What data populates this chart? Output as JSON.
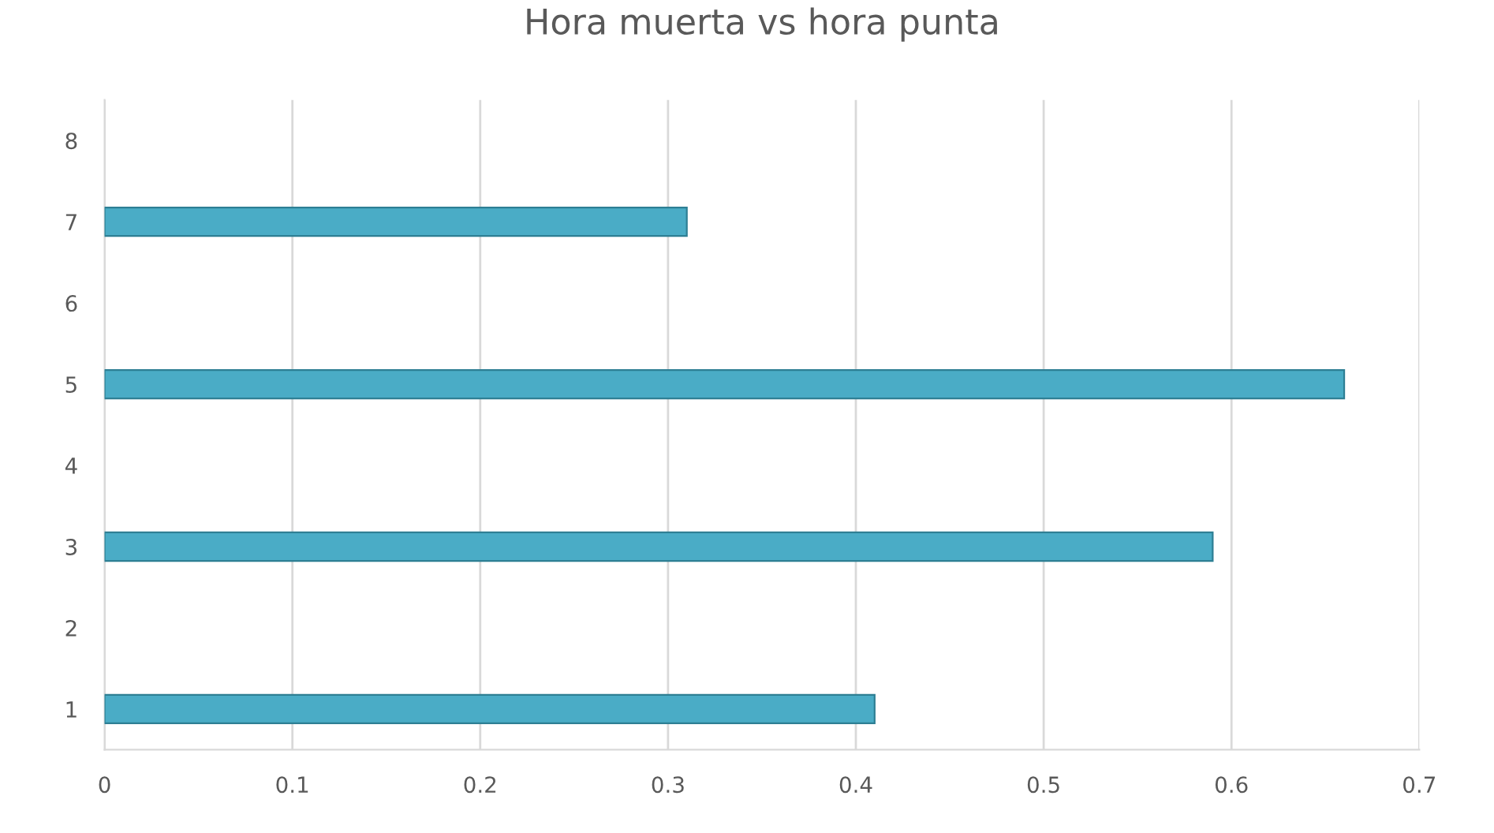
{
  "chart_data": {
    "type": "bar",
    "orientation": "horizontal",
    "title": "Hora muerta vs hora punta",
    "categories": [
      "8",
      "7",
      "6",
      "5",
      "4",
      "3",
      "2",
      "1"
    ],
    "values": [
      null,
      0.31,
      null,
      0.66,
      null,
      0.59,
      null,
      0.41
    ],
    "color": "#4aacc6",
    "xlim": [
      0,
      0.7
    ],
    "xticks": [
      0,
      0.1,
      0.2,
      0.3,
      0.4,
      0.5,
      0.6,
      0.7
    ],
    "grid": "x",
    "legend": false
  }
}
